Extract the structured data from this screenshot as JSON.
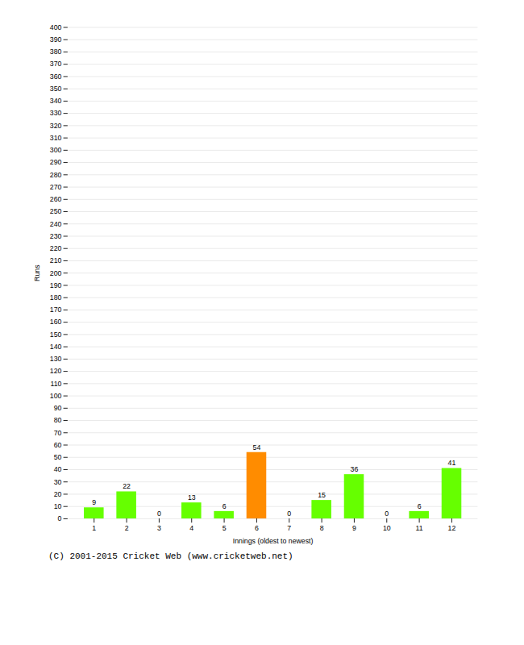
{
  "chart_data": {
    "type": "bar",
    "xlabel": "Innings (oldest to newest)",
    "ylabel": "Runs",
    "caption": "(C) 2001-2015 Cricket Web (www.cricketweb.net)",
    "categories": [
      1,
      2,
      3,
      4,
      5,
      6,
      7,
      8,
      9,
      10,
      11,
      12
    ],
    "values": [
      9,
      22,
      0,
      13,
      6,
      54,
      0,
      15,
      36,
      0,
      6,
      41
    ],
    "colors": [
      "#66ff00",
      "#66ff00",
      "#66ff00",
      "#66ff00",
      "#66ff00",
      "#ff8c00",
      "#66ff00",
      "#66ff00",
      "#66ff00",
      "#66ff00",
      "#66ff00",
      "#66ff00"
    ],
    "ylim": [
      0,
      400
    ],
    "yticks": [
      0,
      10,
      20,
      30,
      40,
      50,
      60,
      70,
      80,
      90,
      100,
      110,
      120,
      130,
      140,
      150,
      160,
      170,
      180,
      190,
      200,
      210,
      220,
      230,
      240,
      250,
      260,
      270,
      280,
      290,
      300,
      310,
      320,
      330,
      340,
      350,
      360,
      370,
      380,
      390,
      400
    ],
    "grid": true,
    "data_labels": true
  }
}
